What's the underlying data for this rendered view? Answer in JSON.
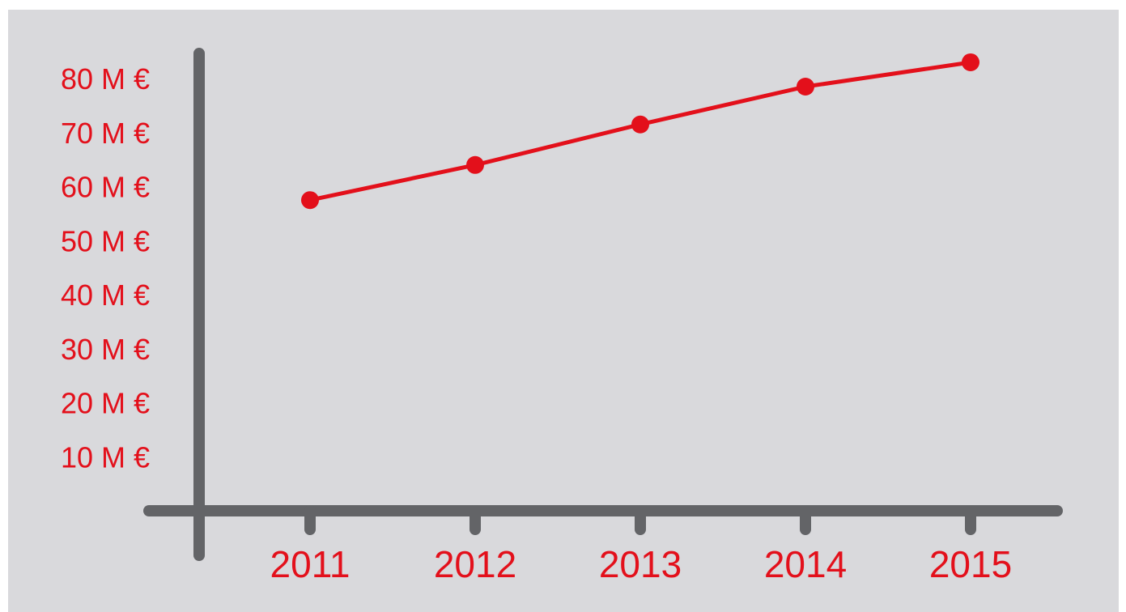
{
  "chart_data": {
    "type": "line",
    "title": "",
    "xlabel": "",
    "ylabel": "",
    "categories": [
      "2011",
      "2012",
      "2013",
      "2014",
      "2015"
    ],
    "series": [
      {
        "values": [
          57.5,
          64,
          71.5,
          78.5,
          83
        ]
      }
    ],
    "y_ticks": [
      10,
      20,
      30,
      40,
      50,
      60,
      70,
      80
    ],
    "y_tick_labels": [
      "10 M €",
      "20 M €",
      "30 M €",
      "40 M €",
      "50 M €",
      "60 M €",
      "70 M €",
      "80 M €"
    ],
    "ylim": [
      0,
      80
    ],
    "grid": false,
    "legend": "none",
    "colors": {
      "background": "#d9d9dc",
      "axis": "#636467",
      "series": "#e3101b",
      "labels": "#e3101b"
    }
  }
}
